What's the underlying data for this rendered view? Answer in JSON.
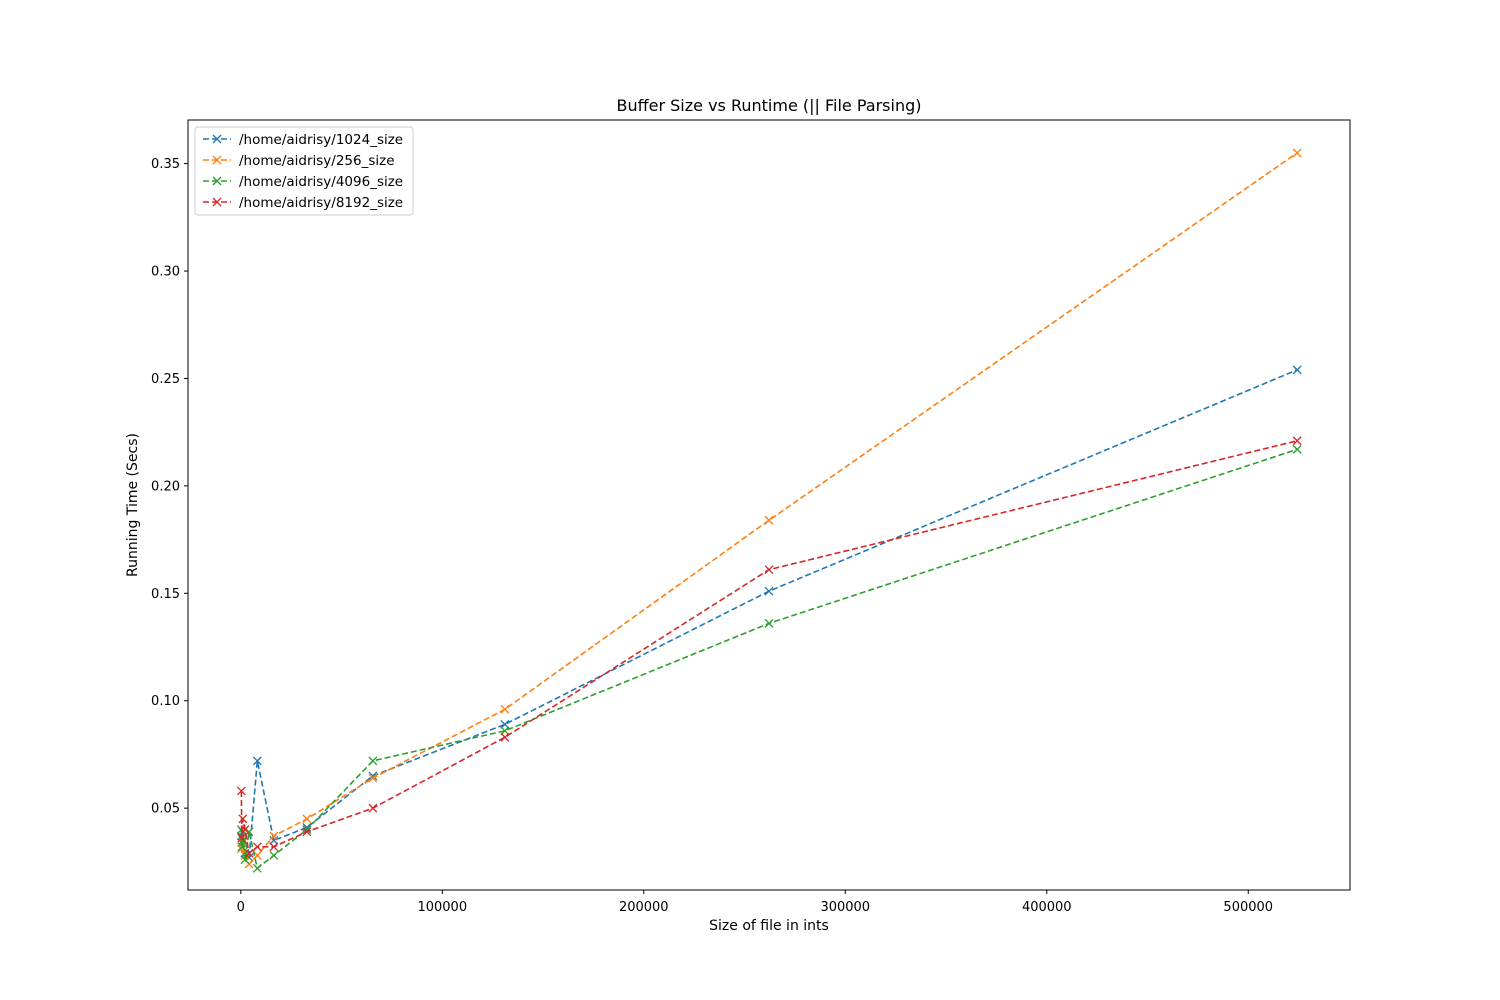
{
  "chart_data": {
    "type": "line",
    "title": "Buffer Size vs Runtime (|| File Parsing)",
    "xlabel": "Size of file in ints",
    "ylabel": "Running Time (Secs)",
    "xlim": [
      -26214,
      550502
    ],
    "ylim": [
      0.0119,
      0.3703
    ],
    "xticks": [
      0,
      100000,
      200000,
      300000,
      400000,
      500000
    ],
    "xtick_labels": [
      "0",
      "100000",
      "200000",
      "300000",
      "400000",
      "500000"
    ],
    "yticks": [
      0.05,
      0.1,
      0.15,
      0.2,
      0.25,
      0.3,
      0.35
    ],
    "ytick_labels": [
      "0.05",
      "0.10",
      "0.15",
      "0.20",
      "0.25",
      "0.30",
      "0.35"
    ],
    "legend_position": "top-left",
    "grid": false,
    "marker": "x",
    "line_style": "dashed",
    "series": [
      {
        "name": "/home/aidrisy/1024_size",
        "color": "#1f77b4",
        "x": [
          256,
          512,
          1024,
          2048,
          4096,
          8192,
          16384,
          32768,
          65536,
          131072,
          262144,
          524288
        ],
        "y": [
          0.037,
          0.034,
          0.039,
          0.029,
          0.027,
          0.072,
          0.035,
          0.041,
          0.065,
          0.089,
          0.151,
          0.254
        ]
      },
      {
        "name": "/home/aidrisy/256_size",
        "color": "#ff7f0e",
        "x": [
          256,
          512,
          1024,
          2048,
          4096,
          8192,
          16384,
          32768,
          65536,
          131072,
          262144,
          524288
        ],
        "y": [
          0.031,
          0.036,
          0.034,
          0.028,
          0.024,
          0.028,
          0.037,
          0.045,
          0.064,
          0.096,
          0.184,
          0.355
        ]
      },
      {
        "name": "/home/aidrisy/4096_size",
        "color": "#2ca02c",
        "x": [
          256,
          512,
          1024,
          2048,
          4096,
          8192,
          16384,
          32768,
          65536,
          131072,
          262144,
          524288
        ],
        "y": [
          0.04,
          0.032,
          0.035,
          0.026,
          0.039,
          0.022,
          0.028,
          0.04,
          0.072,
          0.086,
          0.136,
          0.217
        ]
      },
      {
        "name": "/home/aidrisy/8192_size",
        "color": "#d62728",
        "x": [
          256,
          512,
          1024,
          2048,
          4096,
          8192,
          16384,
          32768,
          65536,
          131072,
          262144,
          524288
        ],
        "y": [
          0.058,
          0.036,
          0.045,
          0.04,
          0.029,
          0.032,
          0.032,
          0.039,
          0.05,
          0.083,
          0.161,
          0.221
        ]
      }
    ]
  }
}
